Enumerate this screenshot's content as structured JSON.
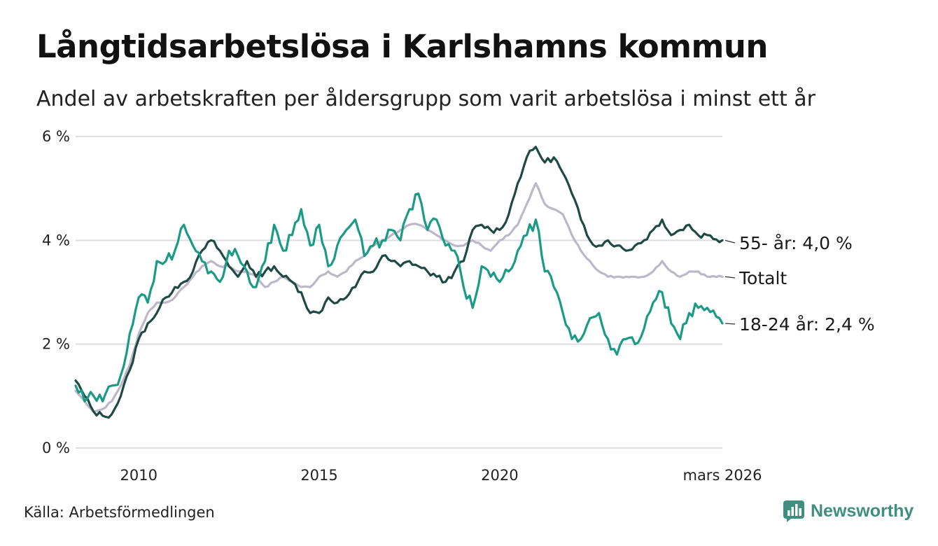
{
  "title": "Långtidsarbetslösa i Karlshamns kommun",
  "subtitle": "Andel av arbetskraften per åldersgrupp som varit arbetslösa i minst ett år",
  "source": "Källa: Arbetsförmedlingen",
  "brand": {
    "name": "Newsworthy",
    "icon": "newsworthy-logo-icon",
    "color": "#3f8f80"
  },
  "chart_data": {
    "type": "line",
    "title": "Långtidsarbetslösa i Karlshamns kommun",
    "xlabel": "",
    "ylabel": "",
    "xlim": [
      2008.25,
      2026.17
    ],
    "ylim": [
      0,
      6
    ],
    "grid": true,
    "y_ticks": [
      {
        "value": 0,
        "label": "0 %"
      },
      {
        "value": 2,
        "label": "2 %"
      },
      {
        "value": 4,
        "label": "4 %"
      },
      {
        "value": 6,
        "label": "6 %"
      }
    ],
    "x_ticks": [
      {
        "value": 2010,
        "label": "2010"
      },
      {
        "value": 2015,
        "label": "2015"
      },
      {
        "value": 2020,
        "label": "2020"
      },
      {
        "value": 2026.17,
        "label": "mars 2026"
      }
    ],
    "series": [
      {
        "name": "Totalt",
        "label": "Totalt",
        "color": "#bdb8c8",
        "points": [
          [
            2008.25,
            1.1
          ],
          [
            2008.5,
            0.9
          ],
          [
            2008.75,
            0.7
          ],
          [
            2009.0,
            0.75
          ],
          [
            2009.25,
            0.9
          ],
          [
            2009.5,
            1.2
          ],
          [
            2009.75,
            1.6
          ],
          [
            2010.0,
            2.2
          ],
          [
            2010.25,
            2.6
          ],
          [
            2010.5,
            2.8
          ],
          [
            2010.75,
            2.8
          ],
          [
            2011.0,
            2.9
          ],
          [
            2011.25,
            3.1
          ],
          [
            2011.5,
            3.3
          ],
          [
            2011.75,
            3.5
          ],
          [
            2012.0,
            3.6
          ],
          [
            2012.25,
            3.5
          ],
          [
            2012.5,
            3.5
          ],
          [
            2012.75,
            3.4
          ],
          [
            2013.0,
            3.4
          ],
          [
            2013.25,
            3.3
          ],
          [
            2013.5,
            3.1
          ],
          [
            2013.75,
            3.2
          ],
          [
            2014.0,
            3.3
          ],
          [
            2014.25,
            3.2
          ],
          [
            2014.5,
            3.1
          ],
          [
            2014.75,
            3.1
          ],
          [
            2015.0,
            3.3
          ],
          [
            2015.25,
            3.4
          ],
          [
            2015.5,
            3.3
          ],
          [
            2015.75,
            3.4
          ],
          [
            2016.0,
            3.6
          ],
          [
            2016.25,
            3.7
          ],
          [
            2016.5,
            3.9
          ],
          [
            2016.75,
            4.0
          ],
          [
            2017.0,
            4.1
          ],
          [
            2017.25,
            4.2
          ],
          [
            2017.5,
            4.3
          ],
          [
            2017.75,
            4.3
          ],
          [
            2018.0,
            4.2
          ],
          [
            2018.25,
            4.1
          ],
          [
            2018.5,
            4.0
          ],
          [
            2018.75,
            3.9
          ],
          [
            2019.0,
            3.9
          ],
          [
            2019.25,
            4.0
          ],
          [
            2019.5,
            3.9
          ],
          [
            2019.75,
            3.8
          ],
          [
            2020.0,
            4.0
          ],
          [
            2020.25,
            4.1
          ],
          [
            2020.5,
            4.3
          ],
          [
            2020.75,
            4.7
          ],
          [
            2021.0,
            5.1
          ],
          [
            2021.25,
            4.7
          ],
          [
            2021.5,
            4.6
          ],
          [
            2021.75,
            4.5
          ],
          [
            2022.0,
            4.1
          ],
          [
            2022.25,
            3.8
          ],
          [
            2022.5,
            3.6
          ],
          [
            2022.75,
            3.4
          ],
          [
            2023.0,
            3.3
          ],
          [
            2023.25,
            3.3
          ],
          [
            2023.5,
            3.3
          ],
          [
            2023.75,
            3.3
          ],
          [
            2024.0,
            3.3
          ],
          [
            2024.25,
            3.4
          ],
          [
            2024.5,
            3.6
          ],
          [
            2024.75,
            3.4
          ],
          [
            2025.0,
            3.3
          ],
          [
            2025.25,
            3.4
          ],
          [
            2025.5,
            3.4
          ],
          [
            2025.75,
            3.3
          ],
          [
            2026.17,
            3.3
          ]
        ]
      },
      {
        "name": "55- år",
        "label": "55- år: 4,0 %",
        "color": "#1e4a43",
        "points": [
          [
            2008.25,
            1.3
          ],
          [
            2008.5,
            1.0
          ],
          [
            2008.75,
            0.7
          ],
          [
            2009.0,
            0.62
          ],
          [
            2009.25,
            0.65
          ],
          [
            2009.5,
            1.0
          ],
          [
            2009.75,
            1.5
          ],
          [
            2010.0,
            2.1
          ],
          [
            2010.25,
            2.4
          ],
          [
            2010.5,
            2.6
          ],
          [
            2010.75,
            2.9
          ],
          [
            2011.0,
            3.1
          ],
          [
            2011.25,
            3.2
          ],
          [
            2011.5,
            3.4
          ],
          [
            2011.75,
            3.8
          ],
          [
            2012.0,
            4.0
          ],
          [
            2012.25,
            3.8
          ],
          [
            2012.5,
            3.5
          ],
          [
            2012.75,
            3.3
          ],
          [
            2013.0,
            3.6
          ],
          [
            2013.25,
            3.3
          ],
          [
            2013.5,
            3.4
          ],
          [
            2013.75,
            3.5
          ],
          [
            2014.0,
            3.3
          ],
          [
            2014.25,
            3.2
          ],
          [
            2014.5,
            3.0
          ],
          [
            2014.75,
            2.6
          ],
          [
            2015.0,
            2.6
          ],
          [
            2015.25,
            2.9
          ],
          [
            2015.5,
            2.8
          ],
          [
            2015.75,
            2.9
          ],
          [
            2016.0,
            3.1
          ],
          [
            2016.25,
            3.4
          ],
          [
            2016.5,
            3.4
          ],
          [
            2016.75,
            3.7
          ],
          [
            2017.0,
            3.6
          ],
          [
            2017.25,
            3.5
          ],
          [
            2017.5,
            3.6
          ],
          [
            2017.75,
            3.5
          ],
          [
            2018.0,
            3.4
          ],
          [
            2018.25,
            3.3
          ],
          [
            2018.5,
            3.2
          ],
          [
            2018.75,
            3.4
          ],
          [
            2019.0,
            3.6
          ],
          [
            2019.25,
            4.2
          ],
          [
            2019.5,
            4.3
          ],
          [
            2019.75,
            4.2
          ],
          [
            2020.0,
            4.2
          ],
          [
            2020.25,
            4.5
          ],
          [
            2020.5,
            5.1
          ],
          [
            2020.75,
            5.6
          ],
          [
            2021.0,
            5.8
          ],
          [
            2021.25,
            5.5
          ],
          [
            2021.5,
            5.6
          ],
          [
            2021.75,
            5.3
          ],
          [
            2022.0,
            4.9
          ],
          [
            2022.25,
            4.4
          ],
          [
            2022.5,
            4.0
          ],
          [
            2022.75,
            3.9
          ],
          [
            2023.0,
            4.0
          ],
          [
            2023.25,
            3.9
          ],
          [
            2023.5,
            3.8
          ],
          [
            2023.75,
            3.9
          ],
          [
            2024.0,
            4.0
          ],
          [
            2024.25,
            4.2
          ],
          [
            2024.5,
            4.4
          ],
          [
            2024.75,
            4.1
          ],
          [
            2025.0,
            4.2
          ],
          [
            2025.25,
            4.3
          ],
          [
            2025.5,
            4.1
          ],
          [
            2025.75,
            4.1
          ],
          [
            2026.17,
            4.0
          ]
        ]
      },
      {
        "name": "18-24 år",
        "label": "18-24 år: 2,4 %",
        "color": "#1b9a86",
        "points": [
          [
            2008.25,
            1.2
          ],
          [
            2008.5,
            0.9
          ],
          [
            2008.75,
            1.0
          ],
          [
            2009.0,
            0.9
          ],
          [
            2009.25,
            1.2
          ],
          [
            2009.5,
            1.4
          ],
          [
            2009.75,
            2.2
          ],
          [
            2010.0,
            2.9
          ],
          [
            2010.25,
            2.8
          ],
          [
            2010.5,
            3.6
          ],
          [
            2010.75,
            3.6
          ],
          [
            2011.0,
            3.8
          ],
          [
            2011.25,
            4.3
          ],
          [
            2011.5,
            3.9
          ],
          [
            2011.75,
            3.6
          ],
          [
            2012.0,
            3.4
          ],
          [
            2012.25,
            3.2
          ],
          [
            2012.5,
            3.8
          ],
          [
            2012.75,
            3.7
          ],
          [
            2013.0,
            3.4
          ],
          [
            2013.25,
            3.1
          ],
          [
            2013.5,
            3.6
          ],
          [
            2013.75,
            4.3
          ],
          [
            2014.0,
            3.8
          ],
          [
            2014.25,
            4.1
          ],
          [
            2014.5,
            4.6
          ],
          [
            2014.75,
            3.9
          ],
          [
            2015.0,
            4.3
          ],
          [
            2015.25,
            3.5
          ],
          [
            2015.5,
            3.9
          ],
          [
            2015.75,
            4.2
          ],
          [
            2016.0,
            4.4
          ],
          [
            2016.25,
            3.7
          ],
          [
            2016.5,
            3.9
          ],
          [
            2016.75,
            4.0
          ],
          [
            2017.0,
            4.2
          ],
          [
            2017.25,
            4.0
          ],
          [
            2017.5,
            4.6
          ],
          [
            2017.75,
            4.9
          ],
          [
            2018.0,
            4.2
          ],
          [
            2018.25,
            4.4
          ],
          [
            2018.5,
            3.9
          ],
          [
            2018.75,
            3.8
          ],
          [
            2019.0,
            3.1
          ],
          [
            2019.25,
            2.7
          ],
          [
            2019.5,
            3.5
          ],
          [
            2019.75,
            3.3
          ],
          [
            2020.0,
            3.2
          ],
          [
            2020.25,
            3.4
          ],
          [
            2020.5,
            3.8
          ],
          [
            2020.75,
            4.1
          ],
          [
            2021.0,
            4.4
          ],
          [
            2021.25,
            3.4
          ],
          [
            2021.5,
            3.1
          ],
          [
            2021.75,
            2.6
          ],
          [
            2022.0,
            2.1
          ],
          [
            2022.25,
            2.1
          ],
          [
            2022.5,
            2.5
          ],
          [
            2022.75,
            2.6
          ],
          [
            2023.0,
            2.1
          ],
          [
            2023.25,
            1.8
          ],
          [
            2023.5,
            2.1
          ],
          [
            2023.75,
            2.0
          ],
          [
            2024.0,
            2.3
          ],
          [
            2024.25,
            2.8
          ],
          [
            2024.5,
            3.0
          ],
          [
            2024.75,
            2.4
          ],
          [
            2025.0,
            2.1
          ],
          [
            2025.25,
            2.6
          ],
          [
            2025.5,
            2.7
          ],
          [
            2025.75,
            2.7
          ],
          [
            2026.17,
            2.4
          ]
        ]
      }
    ],
    "end_labels": [
      "55- år: 4,0 %",
      "Totalt",
      "18-24 år: 2,4 %"
    ]
  }
}
